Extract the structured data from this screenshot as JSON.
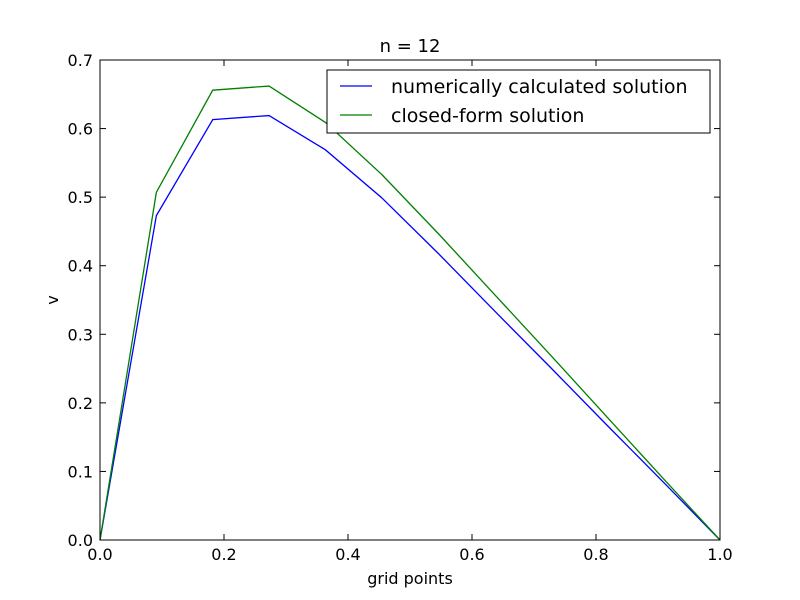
{
  "chart_data": {
    "type": "line",
    "title": "n = 12",
    "xlabel": "grid points",
    "ylabel": "v",
    "xlim": [
      0.0,
      1.0
    ],
    "ylim": [
      0.0,
      0.7
    ],
    "xticks": [
      "0.0",
      "0.2",
      "0.4",
      "0.6",
      "0.8",
      "1.0"
    ],
    "yticks": [
      "0.0",
      "0.1",
      "0.2",
      "0.3",
      "0.4",
      "0.5",
      "0.6",
      "0.7"
    ],
    "grid": false,
    "legend_position": "top-right",
    "x": [
      0.0,
      0.0909,
      0.1818,
      0.2727,
      0.3636,
      0.4545,
      0.5455,
      0.6364,
      0.7273,
      0.8182,
      0.9091,
      1.0
    ],
    "series": [
      {
        "name": "numerically calculated solution",
        "color": "#0000ff",
        "values": [
          0.0,
          0.473,
          0.613,
          0.619,
          0.569,
          0.499,
          0.418,
          0.334,
          0.251,
          0.167,
          0.084,
          0.0
        ]
      },
      {
        "name": "closed-form solution",
        "color": "#008000",
        "values": [
          0.0,
          0.507,
          0.656,
          0.662,
          0.609,
          0.533,
          0.447,
          0.358,
          0.269,
          0.179,
          0.089,
          0.0
        ]
      }
    ]
  }
}
